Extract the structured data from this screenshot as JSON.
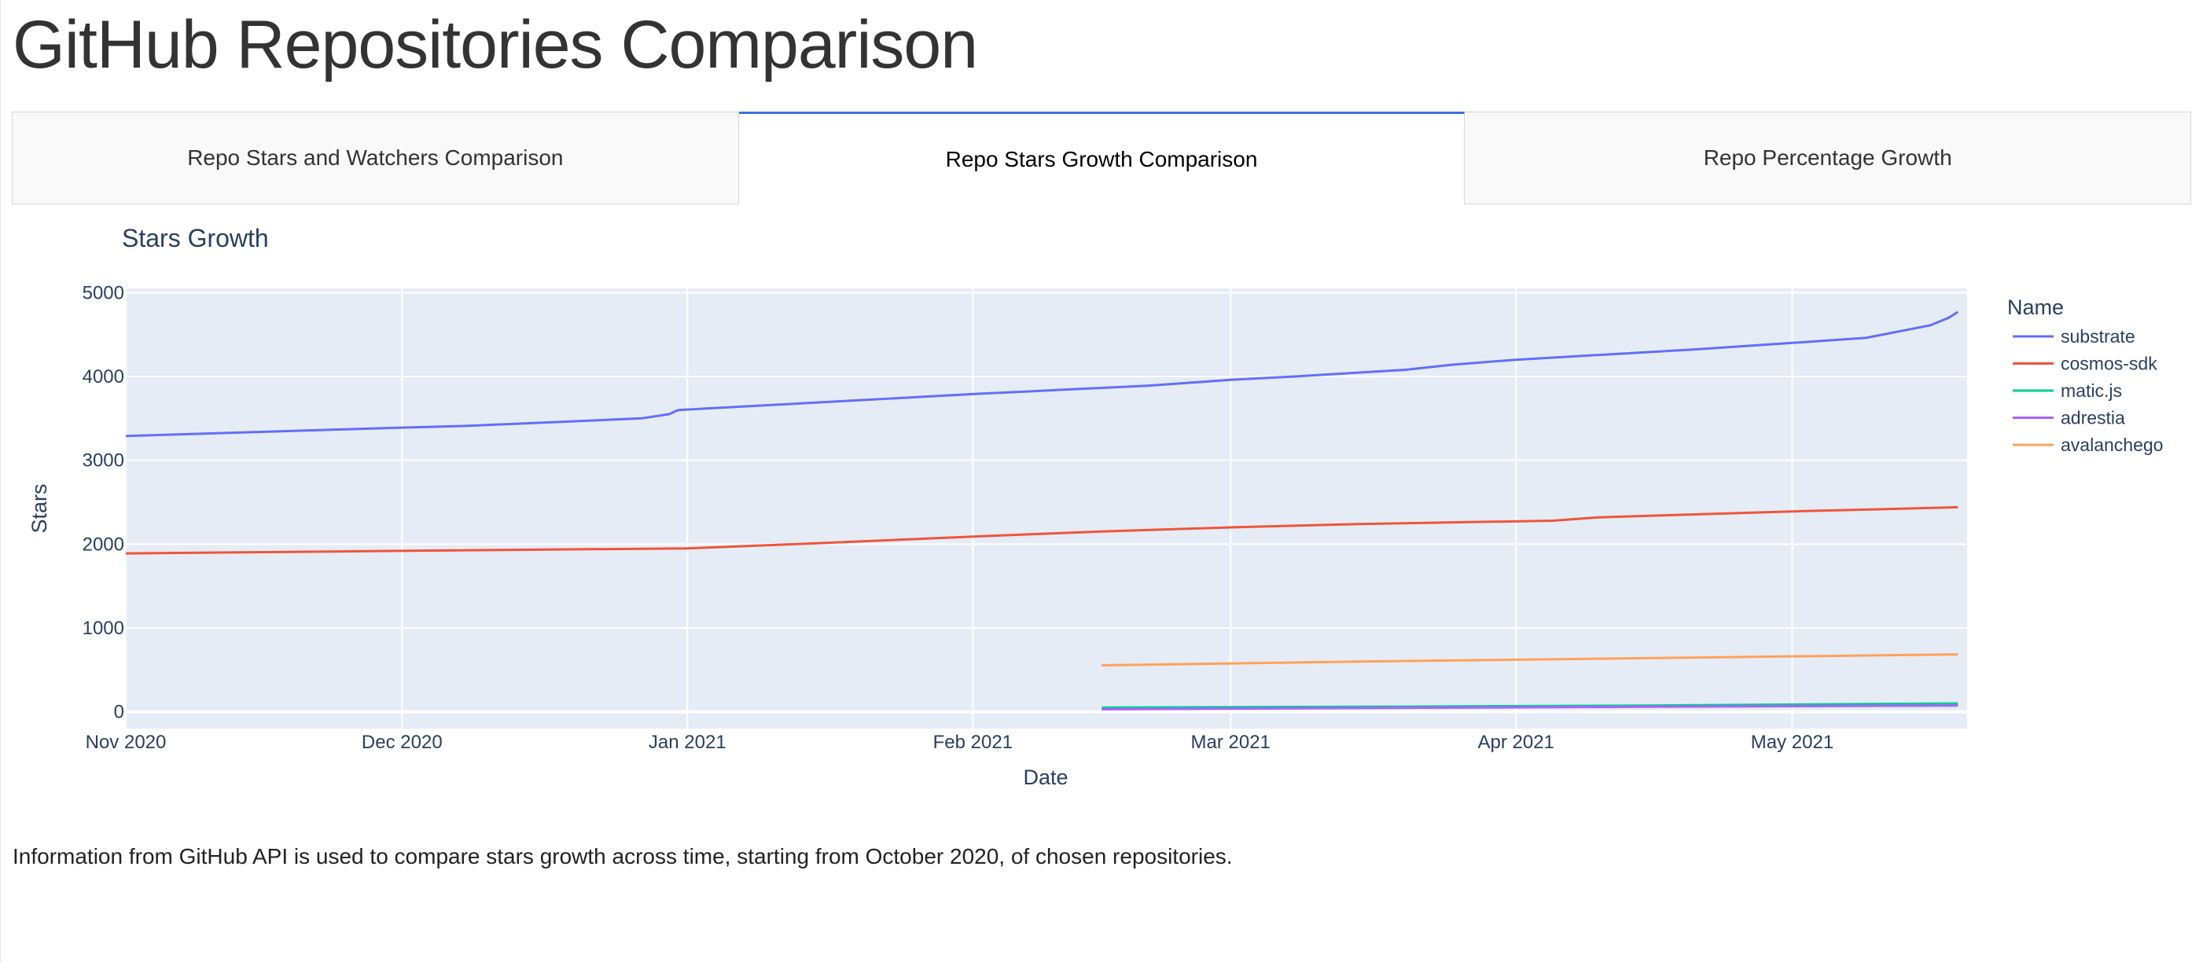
{
  "page": {
    "title": "GitHub Repositories Comparison",
    "footer": "Information from GitHub API is used to compare stars growth across time, starting from October 2020, of chosen repositories."
  },
  "tabs": [
    {
      "label": "Repo Stars and Watchers Comparison",
      "selected": false
    },
    {
      "label": "Repo Stars Growth Comparison",
      "selected": true
    },
    {
      "label": "Repo Percentage Growth",
      "selected": false
    }
  ],
  "colors": {
    "accent": "#3b73e0",
    "plot_bg": "#e5ecf6"
  },
  "chart_data": {
    "type": "line",
    "title": "Stars Growth",
    "xlabel": "Date",
    "ylabel": "Stars",
    "xlim": [
      "2020-11-01",
      "2021-05-20"
    ],
    "ylim": [
      -200,
      5050
    ],
    "grid": true,
    "legend_title": "Name",
    "legend_position": "right",
    "x_ticks": [
      {
        "date": "2020-11-01",
        "label": "Nov 2020"
      },
      {
        "date": "2020-12-01",
        "label": "Dec 2020"
      },
      {
        "date": "2021-01-01",
        "label": "Jan 2021"
      },
      {
        "date": "2021-02-01",
        "label": "Feb 2021"
      },
      {
        "date": "2021-03-01",
        "label": "Mar 2021"
      },
      {
        "date": "2021-04-01",
        "label": "Apr 2021"
      },
      {
        "date": "2021-05-01",
        "label": "May 2021"
      }
    ],
    "y_ticks": [
      0,
      1000,
      2000,
      3000,
      4000,
      5000
    ],
    "series": [
      {
        "name": "substrate",
        "color": "#636efa",
        "points": [
          [
            "2020-11-01",
            3290
          ],
          [
            "2020-12-01",
            3390
          ],
          [
            "2020-12-08",
            3410
          ],
          [
            "2020-12-27",
            3500
          ],
          [
            "2020-12-30",
            3550
          ],
          [
            "2020-12-31",
            3600
          ],
          [
            "2021-02-01",
            3790
          ],
          [
            "2021-02-20",
            3890
          ],
          [
            "2021-03-01",
            3960
          ],
          [
            "2021-03-08",
            4000
          ],
          [
            "2021-03-20",
            4080
          ],
          [
            "2021-03-25",
            4140
          ],
          [
            "2021-04-01",
            4200
          ],
          [
            "2021-04-20",
            4320
          ],
          [
            "2021-05-01",
            4400
          ],
          [
            "2021-05-09",
            4460
          ],
          [
            "2021-05-16",
            4610
          ],
          [
            "2021-05-18",
            4700
          ],
          [
            "2021-05-19",
            4770
          ]
        ]
      },
      {
        "name": "cosmos-sdk",
        "color": "#ef553b",
        "points": [
          [
            "2020-11-01",
            1890
          ],
          [
            "2020-12-01",
            1920
          ],
          [
            "2021-01-01",
            1950
          ],
          [
            "2021-01-15",
            2010
          ],
          [
            "2021-02-01",
            2090
          ],
          [
            "2021-02-15",
            2150
          ],
          [
            "2021-03-01",
            2200
          ],
          [
            "2021-03-15",
            2240
          ],
          [
            "2021-04-05",
            2280
          ],
          [
            "2021-04-10",
            2320
          ],
          [
            "2021-05-01",
            2390
          ],
          [
            "2021-05-19",
            2440
          ]
        ]
      },
      {
        "name": "matic.js",
        "color": "#00cc96",
        "points": [
          [
            "2021-02-15",
            50
          ],
          [
            "2021-03-15",
            60
          ],
          [
            "2021-04-15",
            75
          ],
          [
            "2021-05-19",
            100
          ]
        ]
      },
      {
        "name": "adrestia",
        "color": "#ab63fa",
        "points": [
          [
            "2021-02-15",
            30
          ],
          [
            "2021-03-15",
            45
          ],
          [
            "2021-04-15",
            60
          ],
          [
            "2021-05-19",
            75
          ]
        ]
      },
      {
        "name": "avalanchego",
        "color": "#ffa15a",
        "points": [
          [
            "2021-02-15",
            555
          ],
          [
            "2021-03-15",
            600
          ],
          [
            "2021-04-15",
            640
          ],
          [
            "2021-05-19",
            685
          ]
        ]
      }
    ]
  }
}
